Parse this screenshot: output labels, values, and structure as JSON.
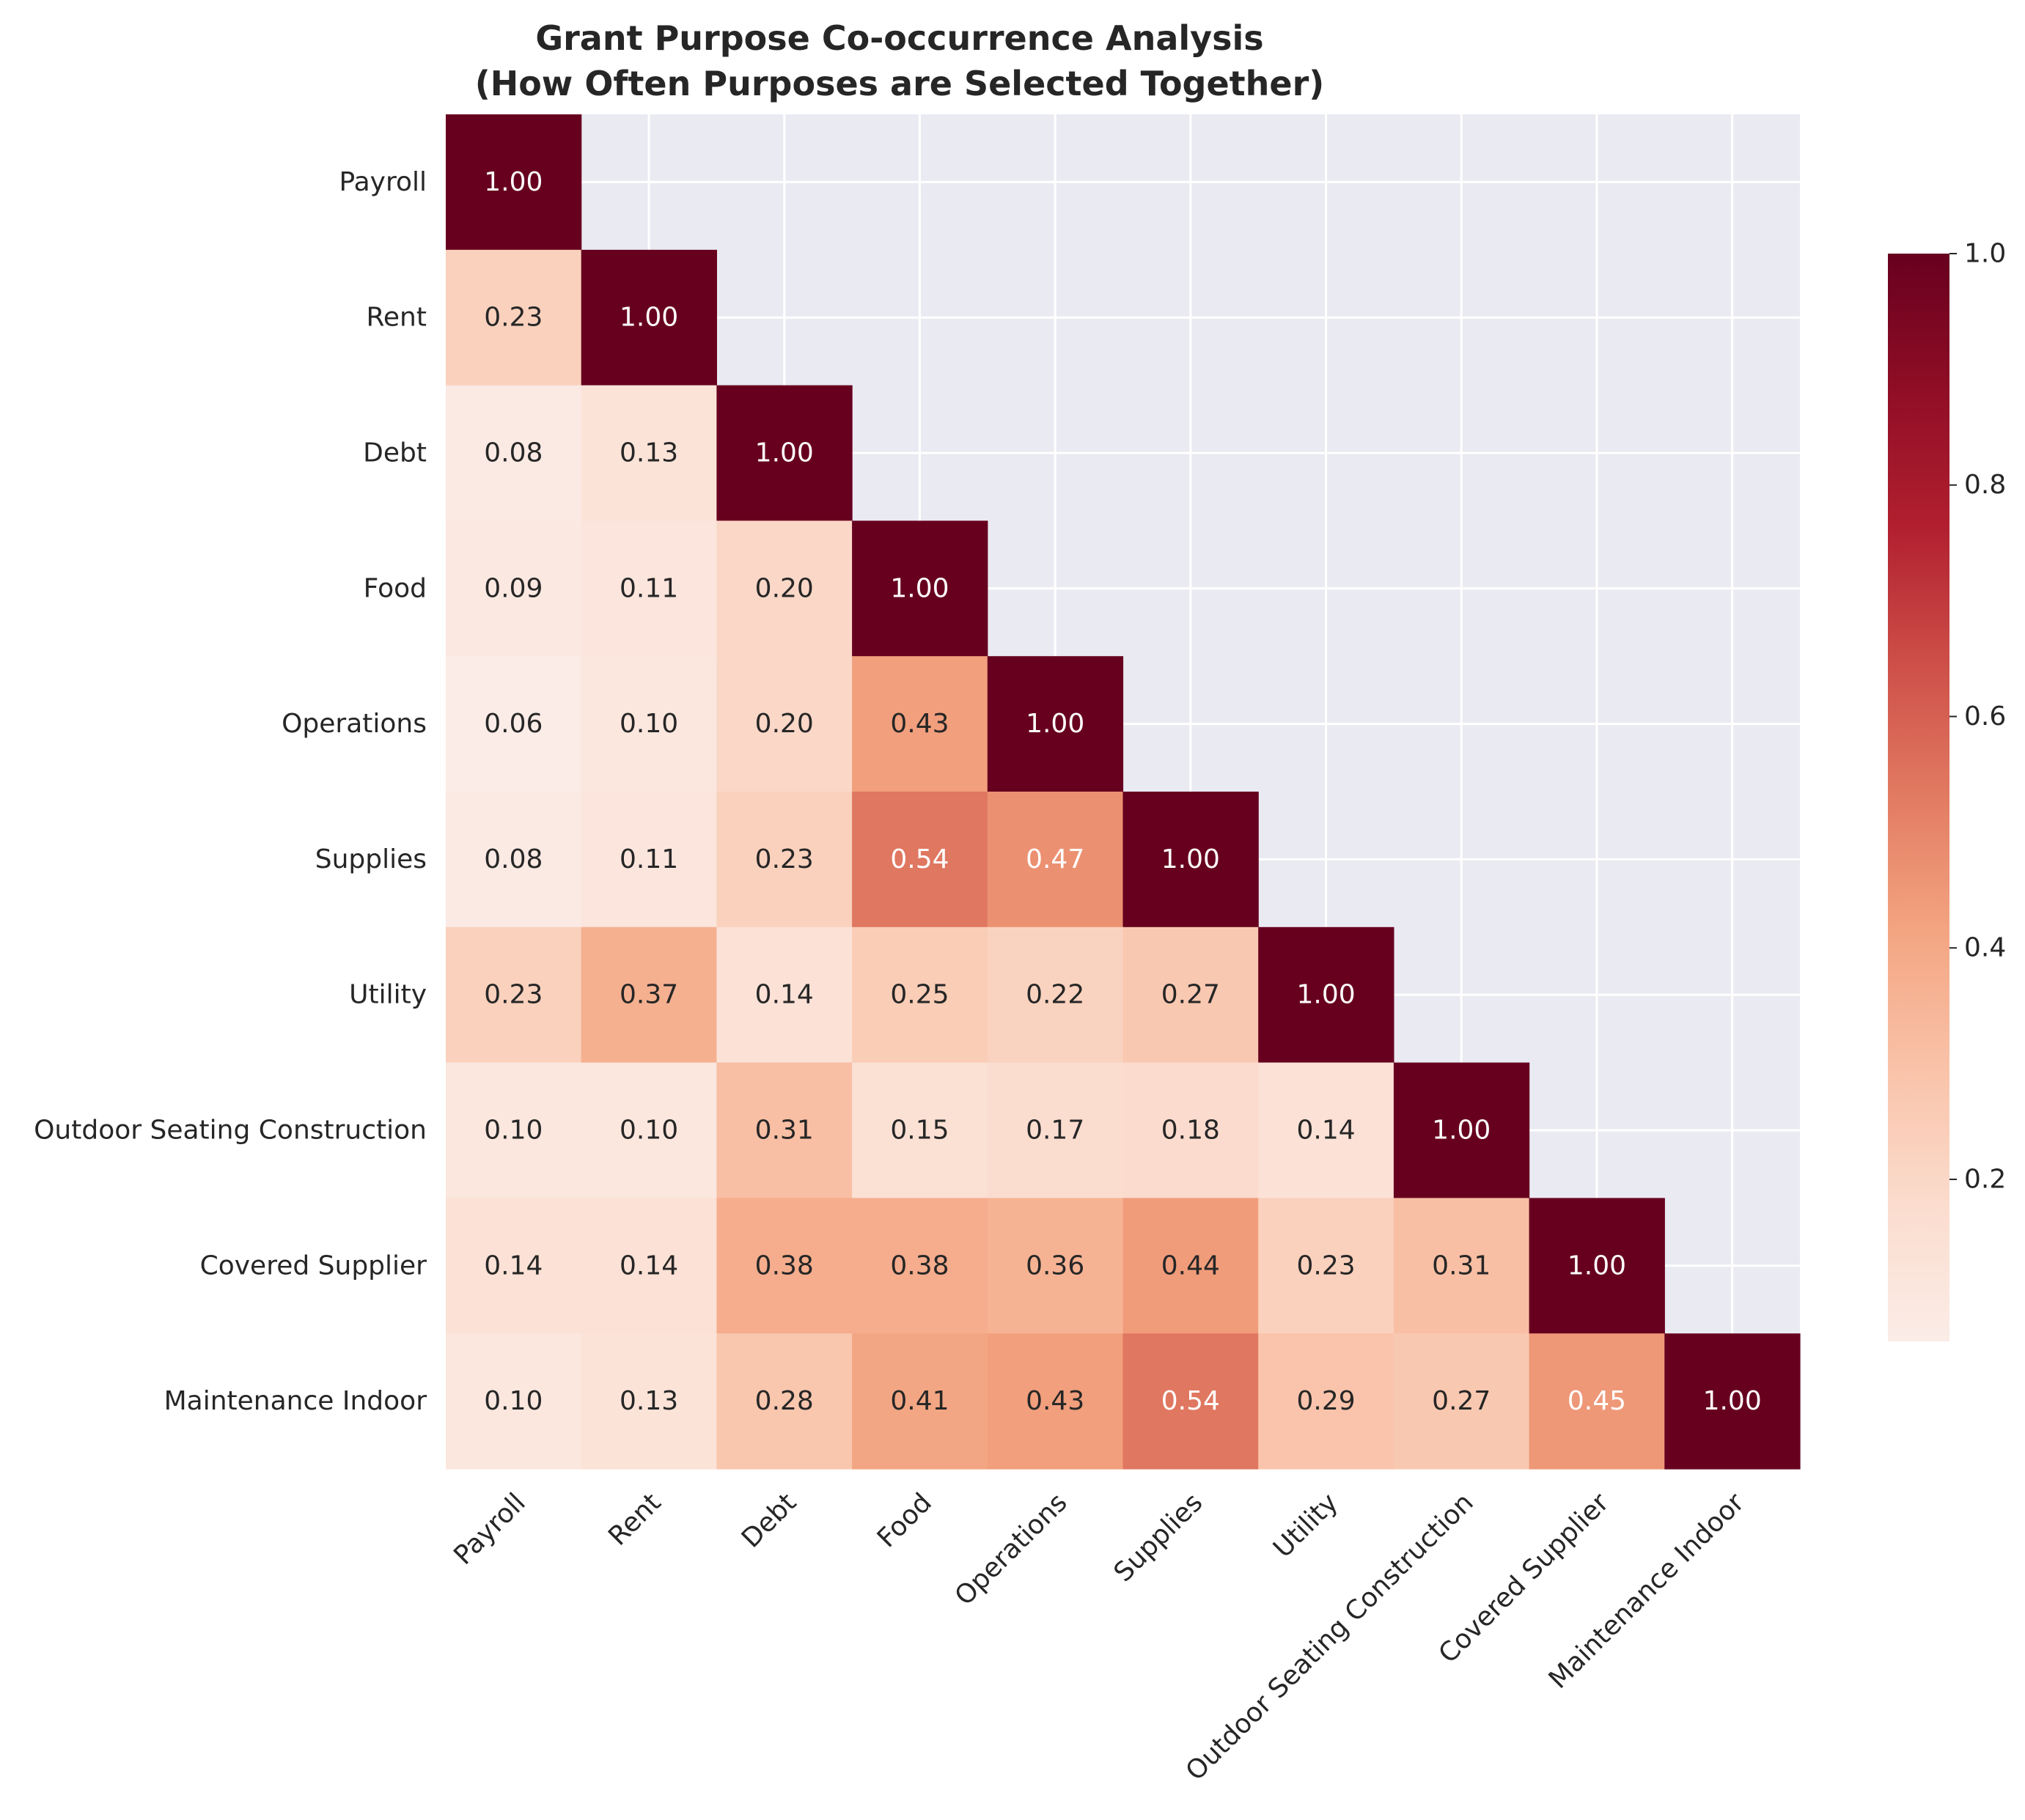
{
  "chart_data": {
    "type": "heatmap",
    "title_line1": "Grant Purpose Co-occurrence Analysis",
    "title_line2": "(How Often Purposes are Selected Together)",
    "xlabel": "",
    "ylabel": "",
    "categories": [
      "Payroll",
      "Rent",
      "Debt",
      "Food",
      "Operations",
      "Supplies",
      "Utility",
      "Outdoor Seating Construction",
      "Covered Supplier",
      "Maintenance Indoor"
    ],
    "values": [
      [
        1.0
      ],
      [
        0.23,
        1.0
      ],
      [
        0.08,
        0.13,
        1.0
      ],
      [
        0.09,
        0.11,
        0.2,
        1.0
      ],
      [
        0.06,
        0.1,
        0.2,
        0.43,
        1.0
      ],
      [
        0.08,
        0.11,
        0.23,
        0.54,
        0.47,
        1.0
      ],
      [
        0.23,
        0.37,
        0.14,
        0.25,
        0.22,
        0.27,
        1.0
      ],
      [
        0.1,
        0.1,
        0.31,
        0.15,
        0.17,
        0.18,
        0.14,
        1.0
      ],
      [
        0.14,
        0.14,
        0.38,
        0.38,
        0.36,
        0.44,
        0.23,
        0.31,
        1.0
      ],
      [
        0.1,
        0.13,
        0.28,
        0.41,
        0.43,
        0.54,
        0.29,
        0.27,
        0.45,
        1.0
      ]
    ],
    "mask": "upper-triangle",
    "colormap": "Reds",
    "vmin": 0.06,
    "vmax": 1.0,
    "colorbar_ticks": [
      "0.2",
      "0.4",
      "0.6",
      "0.8",
      "1.0"
    ],
    "colorbar_tick_values": [
      0.2,
      0.4,
      0.6,
      0.8,
      1.0
    ],
    "grid": true,
    "colors": {
      "axes_bg": "#EAEAF2",
      "grid": "#FFFFFF",
      "text_dark": "#262626"
    }
  }
}
